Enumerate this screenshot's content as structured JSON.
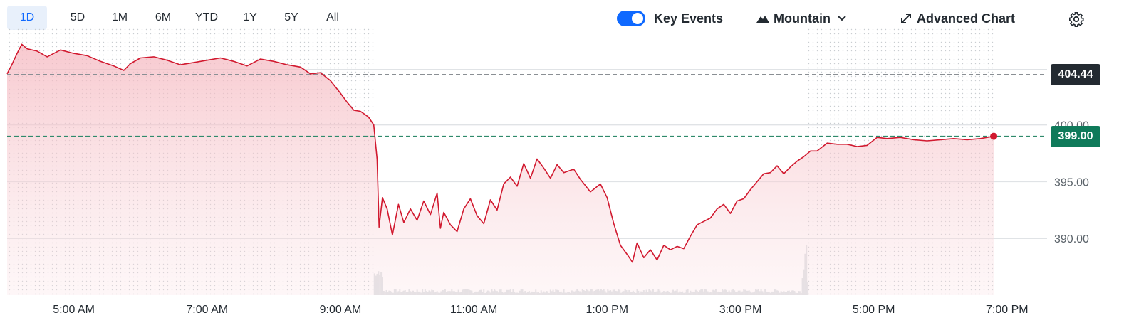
{
  "toolbar": {
    "ranges": [
      "1D",
      "5D",
      "1M",
      "6M",
      "YTD",
      "1Y",
      "5Y",
      "All"
    ],
    "active_range": "1D",
    "key_events": {
      "label": "Key Events",
      "enabled": true
    },
    "chart_type": {
      "label": "Mountain",
      "icon": "mountain-icon"
    },
    "advanced": {
      "label": "Advanced Chart",
      "icon": "expand-arrows-icon"
    },
    "settings": {
      "icon": "gear-icon"
    }
  },
  "colors": {
    "line": "#d1192f",
    "fill": "#f6c9cf",
    "prev_close_line": "#8a8f94",
    "current_line": "#2f8a6b",
    "prev_close_badge": "#232a31",
    "current_badge": "#0f7a5a",
    "active_tab_bg": "#e8f0fb",
    "active_tab_text": "#0f69ff"
  },
  "price_labels": {
    "previous_close": "404.44",
    "current": "399.00"
  },
  "chart_data": {
    "type": "area",
    "x_ticks": [
      "5:00 AM",
      "7:00 AM",
      "9:00 AM",
      "11:00 AM",
      "1:00 PM",
      "3:00 PM",
      "5:00 PM",
      "7:00 PM"
    ],
    "y_ticks": [
      "390.00",
      "395.00",
      "400.00"
    ],
    "ylim": [
      385,
      408.5
    ],
    "xlim_hours": [
      4.0,
      19.6
    ],
    "previous_close": 404.44,
    "current": 399.0,
    "sessions": {
      "pre_market_end": 9.5,
      "after_hours_start": 16.0
    },
    "series": [
      {
        "points": [
          [
            4.0,
            404.5
          ],
          [
            4.07,
            405.3
          ],
          [
            4.15,
            406.3
          ],
          [
            4.22,
            407.1
          ],
          [
            4.3,
            406.7
          ],
          [
            4.45,
            406.5
          ],
          [
            4.6,
            406.0
          ],
          [
            4.8,
            406.6
          ],
          [
            5.0,
            406.3
          ],
          [
            5.2,
            406.1
          ],
          [
            5.4,
            405.6
          ],
          [
            5.6,
            405.2
          ],
          [
            5.75,
            404.8
          ],
          [
            5.85,
            405.4
          ],
          [
            6.0,
            405.9
          ],
          [
            6.2,
            406.0
          ],
          [
            6.4,
            405.7
          ],
          [
            6.6,
            405.3
          ],
          [
            6.8,
            405.5
          ],
          [
            7.0,
            405.7
          ],
          [
            7.2,
            405.9
          ],
          [
            7.4,
            405.6
          ],
          [
            7.6,
            405.2
          ],
          [
            7.8,
            405.8
          ],
          [
            8.0,
            405.6
          ],
          [
            8.2,
            405.3
          ],
          [
            8.4,
            405.1
          ],
          [
            8.55,
            404.5
          ],
          [
            8.7,
            404.6
          ],
          [
            8.85,
            403.9
          ],
          [
            9.0,
            402.8
          ],
          [
            9.1,
            402.0
          ],
          [
            9.2,
            401.3
          ],
          [
            9.3,
            401.2
          ],
          [
            9.42,
            400.7
          ],
          [
            9.5,
            400.0
          ],
          [
            9.55,
            397.0
          ],
          [
            9.58,
            391.0
          ],
          [
            9.63,
            393.6
          ],
          [
            9.7,
            392.6
          ],
          [
            9.78,
            390.3
          ],
          [
            9.87,
            393.0
          ],
          [
            9.95,
            391.4
          ],
          [
            10.05,
            392.6
          ],
          [
            10.15,
            391.6
          ],
          [
            10.25,
            393.3
          ],
          [
            10.35,
            392.1
          ],
          [
            10.45,
            394.0
          ],
          [
            10.5,
            390.9
          ],
          [
            10.55,
            392.3
          ],
          [
            10.65,
            391.2
          ],
          [
            10.75,
            390.6
          ],
          [
            10.85,
            392.6
          ],
          [
            10.95,
            393.5
          ],
          [
            11.05,
            392.0
          ],
          [
            11.15,
            391.3
          ],
          [
            11.25,
            393.4
          ],
          [
            11.35,
            392.5
          ],
          [
            11.45,
            394.8
          ],
          [
            11.55,
            395.4
          ],
          [
            11.65,
            394.6
          ],
          [
            11.75,
            396.6
          ],
          [
            11.85,
            395.3
          ],
          [
            11.95,
            397.0
          ],
          [
            12.05,
            396.2
          ],
          [
            12.15,
            395.3
          ],
          [
            12.25,
            396.5
          ],
          [
            12.35,
            395.8
          ],
          [
            12.5,
            396.1
          ],
          [
            12.6,
            395.2
          ],
          [
            12.75,
            394.1
          ],
          [
            12.9,
            394.8
          ],
          [
            13.0,
            393.6
          ],
          [
            13.1,
            391.3
          ],
          [
            13.2,
            389.4
          ],
          [
            13.3,
            388.6
          ],
          [
            13.38,
            387.9
          ],
          [
            13.45,
            389.6
          ],
          [
            13.55,
            388.3
          ],
          [
            13.65,
            389.0
          ],
          [
            13.75,
            388.1
          ],
          [
            13.85,
            389.4
          ],
          [
            13.95,
            389.0
          ],
          [
            14.05,
            389.3
          ],
          [
            14.15,
            389.1
          ],
          [
            14.25,
            390.2
          ],
          [
            14.35,
            391.2
          ],
          [
            14.45,
            391.5
          ],
          [
            14.55,
            391.8
          ],
          [
            14.65,
            392.6
          ],
          [
            14.75,
            393.0
          ],
          [
            14.85,
            392.2
          ],
          [
            14.95,
            393.3
          ],
          [
            15.05,
            393.5
          ],
          [
            15.15,
            394.3
          ],
          [
            15.25,
            395.0
          ],
          [
            15.35,
            395.7
          ],
          [
            15.45,
            395.8
          ],
          [
            15.55,
            396.4
          ],
          [
            15.65,
            395.7
          ],
          [
            15.75,
            396.3
          ],
          [
            15.85,
            396.8
          ],
          [
            15.95,
            397.2
          ],
          [
            16.05,
            397.7
          ],
          [
            16.15,
            397.7
          ],
          [
            16.3,
            398.4
          ],
          [
            16.45,
            398.3
          ],
          [
            16.6,
            398.3
          ],
          [
            16.75,
            398.1
          ],
          [
            16.9,
            398.2
          ],
          [
            17.05,
            398.9
          ],
          [
            17.2,
            398.8
          ],
          [
            17.4,
            398.9
          ],
          [
            17.6,
            398.7
          ],
          [
            17.8,
            398.6
          ],
          [
            18.0,
            398.7
          ],
          [
            18.2,
            398.8
          ],
          [
            18.4,
            398.7
          ],
          [
            18.6,
            398.8
          ],
          [
            18.7,
            398.9
          ],
          [
            18.8,
            399.0
          ]
        ]
      }
    ]
  }
}
